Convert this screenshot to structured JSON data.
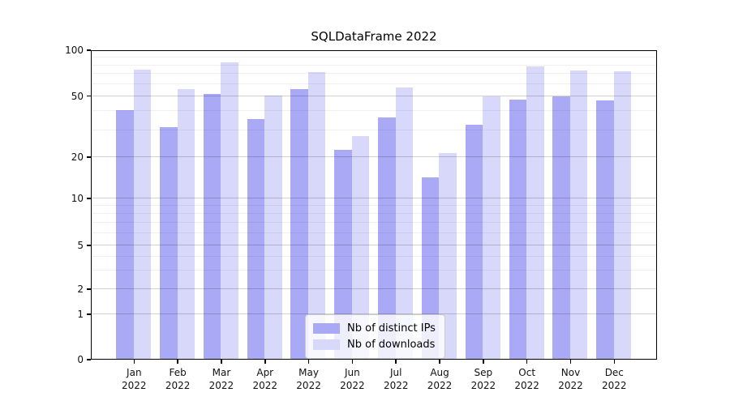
{
  "title": "SQLDataFrame 2022",
  "legend": {
    "items": [
      {
        "label": "Nb of distinct IPs",
        "color": "#a9a9f6"
      },
      {
        "label": "Nb of downloads",
        "color": "#d8d8fa"
      }
    ]
  },
  "axes": {
    "y_tick_labels": [
      "100",
      "50",
      "20",
      "10",
      "5",
      "2",
      "1",
      "0"
    ],
    "x_tick_line1": [
      "Jan",
      "Feb",
      "Mar",
      "Apr",
      "May",
      "Jun",
      "Jul",
      "Aug",
      "Sep",
      "Oct",
      "Nov",
      "Dec"
    ],
    "x_tick_line2": "2022"
  },
  "chart_data": {
    "type": "bar",
    "title": "SQLDataFrame 2022",
    "categories": [
      "Jan 2022",
      "Feb 2022",
      "Mar 2022",
      "Apr 2022",
      "May 2022",
      "Jun 2022",
      "Jul 2022",
      "Aug 2022",
      "Sep 2022",
      "Oct 2022",
      "Nov 2022",
      "Dec 2022"
    ],
    "series": [
      {
        "name": "Nb of distinct IPs",
        "color": "#a9a9f6",
        "values": [
          40,
          31,
          51,
          35,
          55,
          22,
          36,
          14,
          32,
          47,
          49,
          46
        ]
      },
      {
        "name": "Nb of downloads",
        "color": "#d8d8fa",
        "values": [
          74,
          55,
          82,
          50,
          71,
          27,
          56,
          21,
          49,
          77,
          73,
          72
        ]
      }
    ],
    "yscale": "symlog",
    "ylim": [
      0,
      100
    ],
    "y_major_ticks": [
      0,
      1,
      2,
      5,
      10,
      20,
      50,
      100
    ],
    "y_minor_gridlines": [
      3,
      4,
      6,
      7,
      8,
      9,
      30,
      40,
      60,
      70,
      80,
      90
    ],
    "grid": true,
    "legend_position": "lower center (inside axes)"
  },
  "colors": {
    "bar_distinct_ips": "#a9a9f6",
    "bar_downloads": "#d8d8fa",
    "background": "#ffffff",
    "spine": "#000000"
  }
}
